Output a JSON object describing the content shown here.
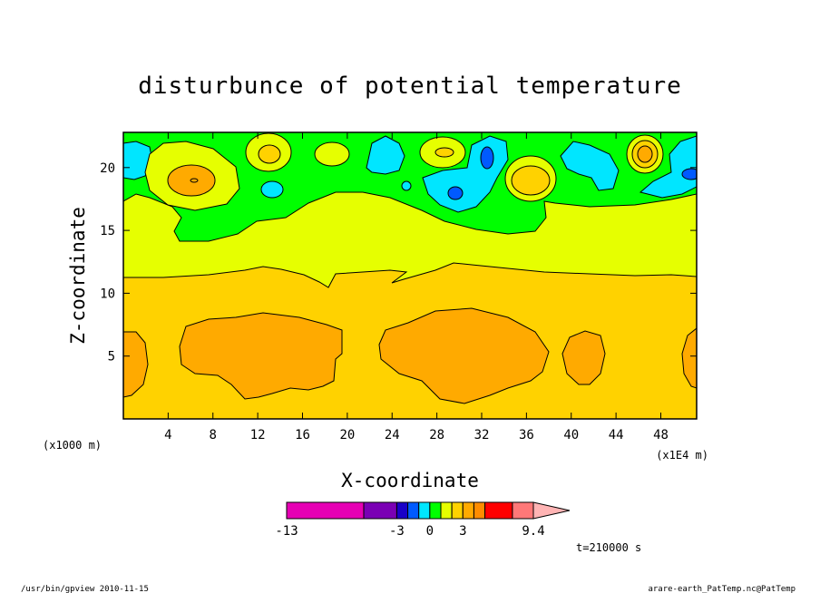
{
  "chart_data": {
    "type": "heatmap",
    "title": "disturbunce of potential temperature",
    "xlabel": "X-coordinate",
    "ylabel": "Z-coordinate",
    "x_unit_left": "(x1000 m)",
    "x_unit_right": "(x1E4 m)",
    "xticks": [
      "4",
      "8",
      "12",
      "16",
      "20",
      "24",
      "28",
      "32",
      "36",
      "40",
      "44",
      "48"
    ],
    "xtick_values": [
      4,
      8,
      12,
      16,
      20,
      24,
      28,
      32,
      36,
      40,
      44,
      48
    ],
    "yticks": [
      "5",
      "10",
      "15",
      "20"
    ],
    "ytick_values": [
      5,
      10,
      15,
      20
    ],
    "xlim": [
      0,
      51.2
    ],
    "ylim": [
      0,
      22.8
    ],
    "colorbar": {
      "colors": [
        "#e600b4",
        "#7a00b4",
        "#1a00c8",
        "#005aff",
        "#00e6ff",
        "#00ff00",
        "#e6ff00",
        "#ffd200",
        "#ffaa00",
        "#ff8c00",
        "#ff0000",
        "#ff7878",
        "#ffb4b4"
      ],
      "labels": [
        "-13",
        "-3",
        "0",
        "3",
        "9.4"
      ],
      "label_values": [
        -13,
        -3,
        0,
        3,
        9.4
      ]
    },
    "regions": [
      {
        "name": "lower layer",
        "z_range": [
          0,
          11.5
        ],
        "level": "orange-yellow"
      },
      {
        "name": "middle layer",
        "z_range": [
          11.5,
          18
        ],
        "level": "yellow"
      },
      {
        "name": "upper layer",
        "z_range": [
          18,
          22.8
        ],
        "level": "green with cyan/blue and yellow/orange cells"
      },
      {
        "name": "warm core left",
        "x_range": [
          5,
          19.5
        ],
        "z_range": [
          1.8,
          8.5
        ],
        "level": "orange"
      },
      {
        "name": "warm core middle",
        "x_range": [
          23.5,
          38
        ],
        "z_range": [
          1.2,
          8.7
        ],
        "level": "orange"
      },
      {
        "name": "warm core right",
        "x_range": [
          39.5,
          43
        ],
        "z_range": [
          2.3,
          6.7
        ],
        "level": "orange"
      }
    ]
  },
  "annotations": {
    "time": "t=210000 s"
  },
  "footer": {
    "left": "/usr/bin/gpview  2010-11-15",
    "right": "arare-earth_PatTemp.nc@PatTemp"
  }
}
